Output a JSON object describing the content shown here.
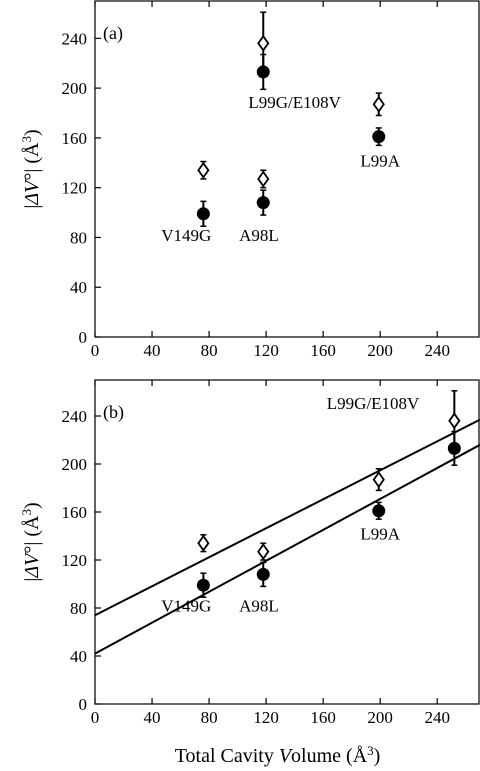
{
  "chart_data": [
    {
      "type": "scatter",
      "panel_label": "(a)",
      "xlabel": "",
      "ylabel": "|ΔV°| (Å³)",
      "xlim": [
        0,
        270
      ],
      "ylim": [
        0,
        270
      ],
      "xticks": [
        0,
        40,
        80,
        120,
        160,
        200,
        240
      ],
      "yticks": [
        0,
        40,
        80,
        120,
        160,
        200,
        240
      ],
      "grid": false,
      "fit_lines": [],
      "series": [
        {
          "marker": "open-diamond",
          "points": [
            {
              "x": 76,
              "y": 134,
              "err": 7
            },
            {
              "x": 118,
              "y": 127,
              "err": 7
            },
            {
              "x": 118,
              "y": 236,
              "err": 25
            },
            {
              "x": 199,
              "y": 187,
              "err": 9
            }
          ]
        },
        {
          "marker": "filled-circle",
          "points": [
            {
              "x": 76,
              "y": 99,
              "err": 10
            },
            {
              "x": 118,
              "y": 108,
              "err": 10
            },
            {
              "x": 118,
              "y": 213,
              "err": 14
            },
            {
              "x": 199,
              "y": 161,
              "err": 7
            }
          ]
        }
      ],
      "annotations": [
        {
          "text": "V149G",
          "x": 64,
          "y": 77
        },
        {
          "text": "A98L",
          "x": 115,
          "y": 77
        },
        {
          "text": "L99G/E108V",
          "x": 140,
          "y": 184
        },
        {
          "text": "L99A",
          "x": 200,
          "y": 137
        }
      ]
    },
    {
      "type": "scatter",
      "panel_label": "(b)",
      "xlabel": "Total Cavity Volume (Å³)",
      "ylabel": "|ΔV°| (Å³)",
      "xlim": [
        0,
        270
      ],
      "ylim": [
        0,
        270
      ],
      "xticks": [
        0,
        40,
        80,
        120,
        160,
        200,
        240
      ],
      "yticks": [
        0,
        40,
        80,
        120,
        160,
        200,
        240
      ],
      "grid": false,
      "fit_lines": [
        {
          "x": [
            0,
            270
          ],
          "y": [
            74,
            237
          ]
        },
        {
          "x": [
            0,
            270
          ],
          "y": [
            42,
            216
          ]
        }
      ],
      "series": [
        {
          "marker": "open-diamond",
          "points": [
            {
              "x": 76,
              "y": 134,
              "err": 7
            },
            {
              "x": 118,
              "y": 127,
              "err": 7
            },
            {
              "x": 199,
              "y": 187,
              "err": 9
            },
            {
              "x": 252,
              "y": 236,
              "err": 25
            }
          ]
        },
        {
          "marker": "filled-circle",
          "points": [
            {
              "x": 76,
              "y": 99,
              "err": 10
            },
            {
              "x": 118,
              "y": 108,
              "err": 10
            },
            {
              "x": 199,
              "y": 161,
              "err": 7
            },
            {
              "x": 252,
              "y": 213,
              "err": 14
            }
          ]
        }
      ],
      "annotations": [
        {
          "text": "V149G",
          "x": 64,
          "y": 77
        },
        {
          "text": "A98L",
          "x": 115,
          "y": 77
        },
        {
          "text": "L99A",
          "x": 200,
          "y": 137
        },
        {
          "text": "L99G/E108V",
          "x": 195,
          "y": 246
        }
      ]
    }
  ]
}
